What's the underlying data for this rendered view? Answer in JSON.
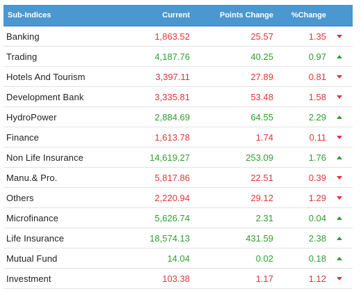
{
  "header": {
    "sub_indices": "Sub-Indices",
    "current": "Current",
    "points_change": "Points Change",
    "percent_change": "%Change"
  },
  "colors": {
    "header_bg": "#4b97cf",
    "up": "#2e9e2e",
    "down": "#e0353a"
  },
  "rows": [
    {
      "name": "Banking",
      "current": "1,863.52",
      "points": "25.57",
      "pct": "1.35",
      "direction": "down"
    },
    {
      "name": "Trading",
      "current": "4,187.76",
      "points": "40.25",
      "pct": "0.97",
      "direction": "up"
    },
    {
      "name": "Hotels And Tourism",
      "current": "3,397.11",
      "points": "27.89",
      "pct": "0.81",
      "direction": "down"
    },
    {
      "name": "Development Bank",
      "current": "3,335.81",
      "points": "53.48",
      "pct": "1.58",
      "direction": "down"
    },
    {
      "name": "HydroPower",
      "current": "2,884.69",
      "points": "64.55",
      "pct": "2.29",
      "direction": "up"
    },
    {
      "name": "Finance",
      "current": "1,613.78",
      "points": "1.74",
      "pct": "0.11",
      "direction": "down"
    },
    {
      "name": "Non Life Insurance",
      "current": "14,619.27",
      "points": "253.09",
      "pct": "1.76",
      "direction": "up"
    },
    {
      "name": "Manu.& Pro.",
      "current": "5,817.86",
      "points": "22.51",
      "pct": "0.39",
      "direction": "down"
    },
    {
      "name": "Others",
      "current": "2,220.94",
      "points": "29.12",
      "pct": "1.29",
      "direction": "down"
    },
    {
      "name": "Microfinance",
      "current": "5,626.74",
      "points": "2.31",
      "pct": "0.04",
      "direction": "up"
    },
    {
      "name": "Life Insurance",
      "current": "18,574.13",
      "points": "431.59",
      "pct": "2.38",
      "direction": "up"
    },
    {
      "name": "Mutual Fund",
      "current": "14.04",
      "points": "0.02",
      "pct": "0.18",
      "direction": "up"
    },
    {
      "name": "Investment",
      "current": "103.38",
      "points": "1.17",
      "pct": "1.12",
      "direction": "down"
    }
  ]
}
